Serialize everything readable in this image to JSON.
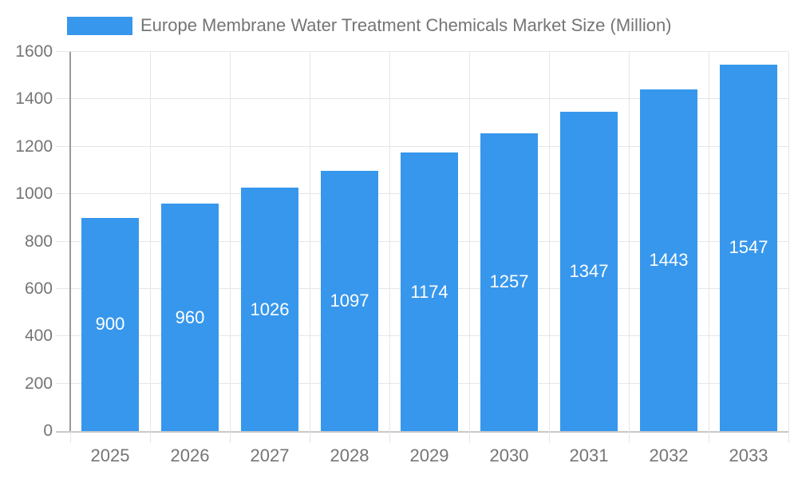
{
  "legend": {
    "title": "Europe Membrane Water Treatment Chemicals Market Size (Million)"
  },
  "chart_data": {
    "type": "bar",
    "title": "Europe Membrane Water Treatment Chemicals Market Size (Million)",
    "categories": [
      "2025",
      "2026",
      "2027",
      "2028",
      "2029",
      "2030",
      "2031",
      "2032",
      "2033"
    ],
    "values": [
      900,
      960,
      1026,
      1097,
      1174,
      1257,
      1347,
      1443,
      1547
    ],
    "xlabel": "",
    "ylabel": "",
    "ylim": [
      0,
      1600
    ],
    "y_ticks": [
      0,
      200,
      400,
      600,
      800,
      1000,
      1200,
      1400,
      1600
    ],
    "grid": true,
    "legend_position": "top",
    "value_labels_inside_bars": true,
    "colors": {
      "bar": "#3797EC",
      "bar_value_text": "#ffffff",
      "axis_text": "#757575",
      "gridline": "#e6e6e6",
      "baseline": "#c9c9c9",
      "y_axis_line": "#999999"
    }
  }
}
